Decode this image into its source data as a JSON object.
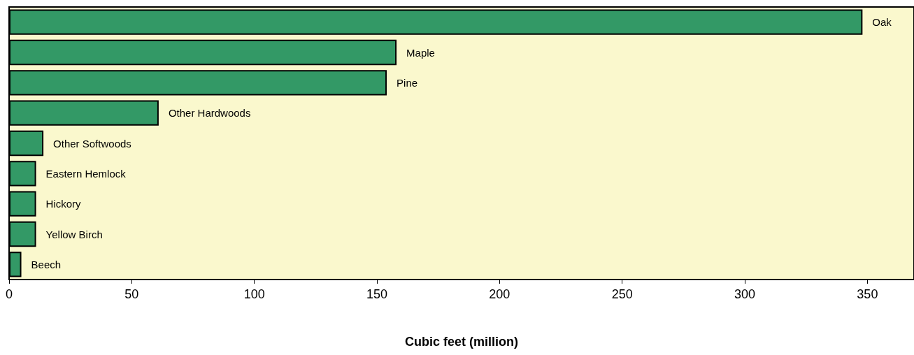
{
  "chart_data": {
    "type": "bar",
    "orientation": "horizontal",
    "xlabel": "Cubic feet (million)",
    "categories": [
      "Oak",
      "Maple",
      "Pine",
      "Other Hardwoods",
      "Other Softwoods",
      "Eastern Hemlock",
      "Hickory",
      "Yellow Birch",
      "Beech"
    ],
    "values": [
      348,
      158,
      154,
      61,
      14,
      11,
      11,
      11,
      5
    ],
    "color": "#339966",
    "xlim": [
      0,
      369
    ],
    "xticks": [
      0,
      50,
      100,
      150,
      200,
      250,
      300,
      350
    ],
    "grid": false
  }
}
